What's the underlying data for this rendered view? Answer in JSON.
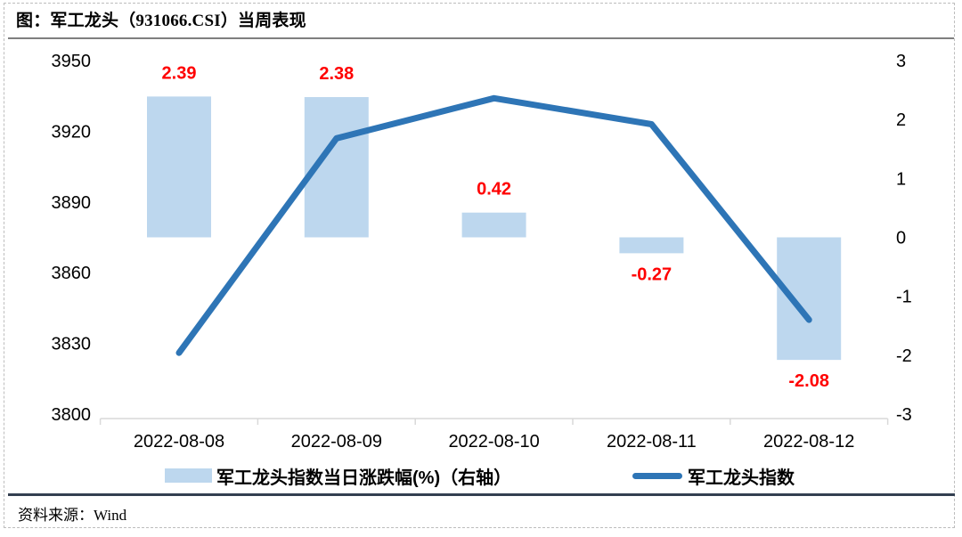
{
  "title": "图：军工龙头（931066.CSI）当周表现",
  "source": "资料来源：Wind",
  "legend": {
    "bar_label": "军工龙头指数当日涨跌幅(%)（右轴）",
    "line_label": "军工龙头指数"
  },
  "colors": {
    "bar_fill": "#BDD7EE",
    "line": "#2E75B6",
    "data_label": "#FF0000",
    "axis_line": "#D9D9D9",
    "title_rule": "#7F7F7F",
    "footer_rule": "#333F50",
    "text": "#000000"
  },
  "chart_data": {
    "type": "combo",
    "title": "图：军工龙头（931066.CSI）当周表现",
    "categories": [
      "2022-08-08",
      "2022-08-09",
      "2022-08-10",
      "2022-08-11",
      "2022-08-12"
    ],
    "series": [
      {
        "name": "军工龙头指数当日涨跌幅(%)（右轴）",
        "type": "bar",
        "axis": "right",
        "values": [
          2.39,
          2.38,
          0.42,
          -0.27,
          -2.08
        ],
        "labels": [
          "2.39",
          "2.38",
          "0.42",
          "-0.27",
          "-2.08"
        ]
      },
      {
        "name": "军工龙头指数",
        "type": "line",
        "axis": "left",
        "values": [
          3826,
          3917,
          3934,
          3923,
          3840
        ]
      }
    ],
    "left_axis": {
      "min": 3800,
      "max": 3950,
      "ticks": [
        3950,
        3920,
        3890,
        3860,
        3830,
        3800
      ]
    },
    "right_axis": {
      "min": -3,
      "max": 3,
      "ticks": [
        3,
        2,
        1,
        0,
        -1,
        -2,
        -3
      ]
    },
    "grid": false,
    "legend_position": "bottom",
    "source": "Wind"
  }
}
